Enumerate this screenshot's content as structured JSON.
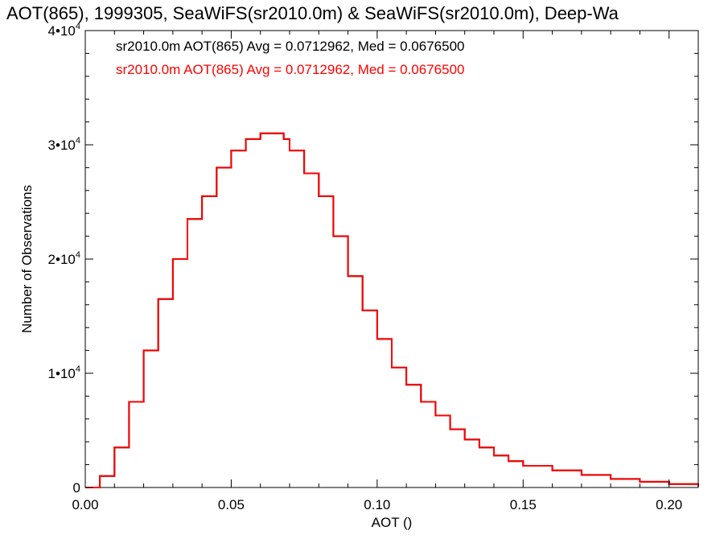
{
  "chart_data": {
    "type": "line",
    "title": "AOT(865), 1999305, SeaWiFS(sr2010.0m) & SeaWiFS(sr2010.0m), Deep-Wa",
    "xlabel": "AOT ()",
    "ylabel": "Number of Observations",
    "xlim": [
      0.0,
      0.21
    ],
    "ylim": [
      0,
      40000
    ],
    "x_ticks": [
      {
        "value": 0.0,
        "label": "0.00"
      },
      {
        "value": 0.05,
        "label": "0.05"
      },
      {
        "value": 0.1,
        "label": "0.10"
      },
      {
        "value": 0.15,
        "label": "0.15"
      },
      {
        "value": 0.2,
        "label": "0.20"
      }
    ],
    "y_ticks": [
      {
        "value": 0,
        "mantissa": "0",
        "exponent": ""
      },
      {
        "value": 10000,
        "mantissa": "1•10",
        "exponent": "4"
      },
      {
        "value": 20000,
        "mantissa": "2•10",
        "exponent": "4"
      },
      {
        "value": 30000,
        "mantissa": "3•10",
        "exponent": "4"
      },
      {
        "value": 40000,
        "mantissa": "4•10",
        "exponent": "4"
      }
    ],
    "grid": false,
    "step": true,
    "legend": [
      {
        "text": "sr2010.0m AOT(865) Avg = 0.0712962, Med = 0.0676500",
        "color": "#000000"
      },
      {
        "text": "sr2010.0m AOT(865) Avg = 0.0712962, Med = 0.0676500",
        "color": "#ff0000"
      }
    ],
    "series": [
      {
        "color": "#000000",
        "x": [
          0.0,
          0.005,
          0.01,
          0.015,
          0.02,
          0.025,
          0.03,
          0.035,
          0.04,
          0.045,
          0.05,
          0.055,
          0.06,
          0.063,
          0.065,
          0.068,
          0.07,
          0.075,
          0.08,
          0.085,
          0.09,
          0.095,
          0.1,
          0.105,
          0.11,
          0.115,
          0.12,
          0.125,
          0.13,
          0.135,
          0.14,
          0.145,
          0.15,
          0.16,
          0.17,
          0.18,
          0.19,
          0.2,
          0.21
        ],
        "y": [
          0,
          1000,
          3500,
          7500,
          12000,
          16500,
          20000,
          23500,
          25500,
          28000,
          29500,
          30500,
          31000,
          31000,
          31000,
          30500,
          29500,
          27500,
          25500,
          22000,
          18500,
          15500,
          13000,
          10500,
          9000,
          7500,
          6300,
          5100,
          4200,
          3500,
          2800,
          2300,
          1900,
          1500,
          1100,
          750,
          500,
          300,
          100
        ]
      },
      {
        "color": "#ff0000",
        "x": [
          0.0,
          0.005,
          0.01,
          0.015,
          0.02,
          0.025,
          0.03,
          0.035,
          0.04,
          0.045,
          0.05,
          0.055,
          0.06,
          0.063,
          0.065,
          0.068,
          0.07,
          0.075,
          0.08,
          0.085,
          0.09,
          0.095,
          0.1,
          0.105,
          0.11,
          0.115,
          0.12,
          0.125,
          0.13,
          0.135,
          0.14,
          0.145,
          0.15,
          0.16,
          0.17,
          0.18,
          0.19,
          0.2,
          0.21
        ],
        "y": [
          0,
          1000,
          3500,
          7500,
          12000,
          16500,
          20000,
          23500,
          25500,
          28000,
          29500,
          30500,
          31000,
          31000,
          31000,
          30500,
          29500,
          27500,
          25500,
          22000,
          18500,
          15500,
          13000,
          10500,
          9000,
          7500,
          6300,
          5100,
          4200,
          3500,
          2800,
          2300,
          1900,
          1500,
          1100,
          750,
          500,
          300,
          100
        ]
      }
    ]
  }
}
